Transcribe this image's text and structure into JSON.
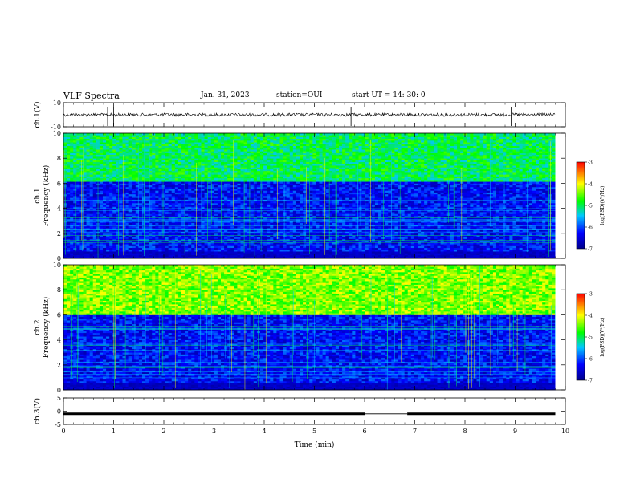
{
  "header": {
    "title": "VLF Spectra",
    "date": "Jan. 31, 2023",
    "station": "station=OUI",
    "start": "start  UT  =   14: 30: 0"
  },
  "chart_data": [
    {
      "type": "line",
      "panel": "ch1-waveform",
      "ylabel": "ch.1(V)",
      "ylim": [
        -10,
        10
      ],
      "yticks": [
        "10",
        "-10"
      ],
      "x_range": [
        0,
        9.8
      ],
      "baseline": 0,
      "spikes_min": [
        0.88,
        1.0,
        5.73,
        8.92
      ]
    },
    {
      "type": "heatmap",
      "panel": "ch1-spectrogram",
      "ylabel_top": "ch.1",
      "ylabel": "Frequency (kHz)",
      "ylim": [
        0,
        10
      ],
      "yticks": [
        "10",
        "8",
        "6",
        "4",
        "2",
        "0"
      ],
      "x_range": [
        0,
        9.8
      ],
      "band_edge_khz": 6.1,
      "upper_band_log_psd": -5.0,
      "lower_band_log_psd": -6.3,
      "colorbar": {
        "label": "log(PSD)(V²/Hz)",
        "range": [
          -7,
          -3
        ],
        "ticks": [
          "-3",
          "-4",
          "-5",
          "-6",
          "-7"
        ]
      }
    },
    {
      "type": "heatmap",
      "panel": "ch2-spectrogram",
      "ylabel_top": "ch.2",
      "ylabel": "Frequency (kHz)",
      "ylim": [
        0,
        10
      ],
      "yticks": [
        "10",
        "8",
        "6",
        "4",
        "2",
        "0"
      ],
      "x_range": [
        0,
        9.8
      ],
      "band_edge_khz": 6.0,
      "upper_band_log_psd": -4.4,
      "lower_band_log_psd": -6.3,
      "colorbar": {
        "label": "log(PSD)(V²/Hz)",
        "range": [
          -7,
          -3
        ],
        "ticks": [
          "-3",
          "-4",
          "-5",
          "-6",
          "-7"
        ]
      }
    },
    {
      "type": "line",
      "panel": "ch3-waveform",
      "ylabel": "ch.3(V)",
      "ylim": [
        -5,
        5
      ],
      "yticks": [
        "5",
        "0",
        "-5"
      ],
      "x_range": [
        0,
        9.8
      ],
      "level": -1,
      "gap_min": [
        6.0,
        6.85
      ],
      "xlabel": "Time (min)",
      "xlim": [
        0,
        10
      ],
      "xticks": [
        "0",
        "1",
        "2",
        "3",
        "4",
        "5",
        "6",
        "7",
        "8",
        "9",
        "10"
      ]
    }
  ],
  "colors": {
    "deep_blue": "#00008b",
    "blue": "#0000ff",
    "cyan": "#00c8ff",
    "green": "#00ff00",
    "yellow": "#ffff00",
    "red": "#ff0000"
  }
}
